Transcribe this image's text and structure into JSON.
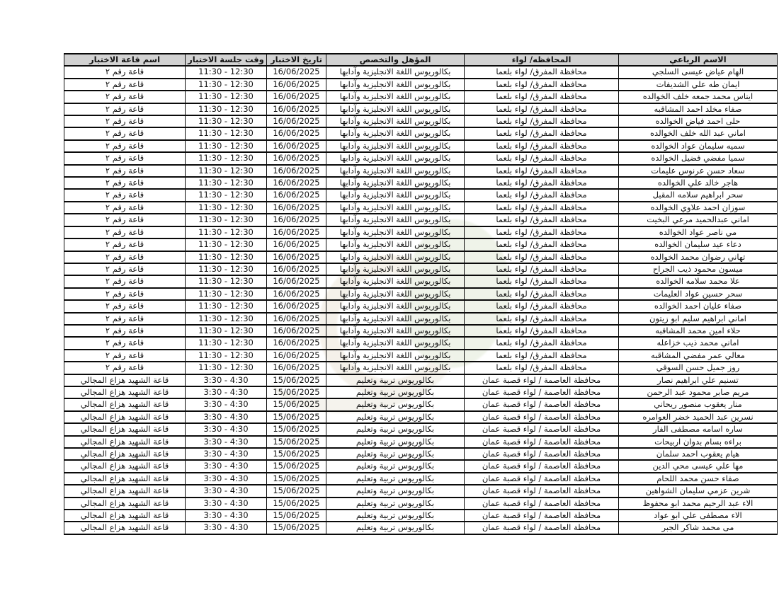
{
  "table": {
    "headers": [
      "الاسم الرباعي",
      "المحافظه/ لواء",
      "المؤهل والتخصص",
      "تاريخ الاختبار",
      "وقت جلسة الاختبار",
      "اسم قاعة الاختبار"
    ],
    "groups": [
      {
        "governorate": "محافظة المفرق/ لواء بلعما",
        "qualification": "بكالوريوس اللغة الانجليزية وآدابها",
        "date": "16/06/2025",
        "time": "11:30 - 12:30",
        "hall": "قاعة رقم ٢",
        "names": [
          "الهام عياض عيسى السلجي",
          "ايمان طه علي الشديفات",
          "ايناس محمد جمعه خلف الخوالده",
          "صفاء مخلد احمد المشاقبه",
          "حلى احمد فياض الخوالده",
          "اماني عبد الله خلف الخوالده",
          "سميه سليمان عواد الخوالده",
          "سميا مفضي فضيل الخوالده",
          "سعاد حسن عرنوس عليمات",
          "هاجر خالد علي الخوالده",
          "سحر ابراهيم سلامه المقبل",
          "سوزان احمد علاوي الخوالده",
          "اماني عبدالحميد مرعي البخيت",
          "مي ناصر عواد الخوالده",
          "دعاء عيد سليمان الخوالده",
          "تهاني رضوان محمد الخوالده",
          "ميسون محمود ذيب الجراح",
          "علا محمد سلامه الخوالده",
          "سحر حسين عواد العليمات",
          "صفاء عليان احمد الخوالده",
          "اماني ابراهيم سليم ابو زيتون",
          "حلاء امين محمد المشاقبه",
          "اماني محمد ذيب خزاعله",
          "معالي عمر مفضي المشاقبه",
          "روز جميل حسن السوقي"
        ]
      },
      {
        "governorate": "محافظة العاصمة / لواء قصبة عمان",
        "qualification": "بكالوريوس تربية وتعليم",
        "date": "15/06/2025",
        "time": "3:30 - 4:30",
        "hall": "قاعة الشهيد هزاع المجالي",
        "names": [
          "تسنيم علي ابراهيم نصار",
          "مريم صابر محمود عبد الرحمن",
          "منار يعقوب منصور ريحاني",
          "نسرين عبد الحميد خضر العوامره",
          "ساره اسامه مصطفى الفار",
          "براءه بسام بدوان اربيحات",
          "هيام يعقوب احمد سلمان",
          "مها علي عيسى محي الدين",
          "صفاء حسن محمد اللحام",
          "شرين عزمي سليمان الشواهين",
          "الاء عبد الرحيم محمد ابو محفوظ",
          "الاء مصطفى علي ابو عواد",
          "مى محمد شاكر الجبر"
        ]
      }
    ]
  }
}
